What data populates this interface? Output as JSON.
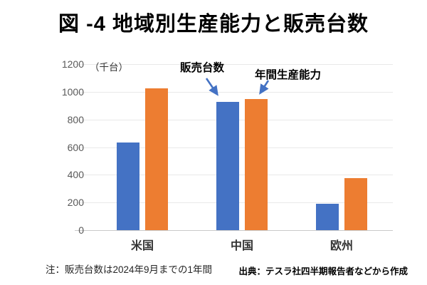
{
  "title": "図 -4 地域別生産能力と販売台数",
  "axis": {
    "unit_label": "（千台）",
    "y_ticks": [
      "1200",
      "1000",
      "800",
      "600",
      "400",
      "200",
      "0"
    ]
  },
  "annotations": {
    "sales_label": "販売台数",
    "capacity_label": "年間生産能力"
  },
  "notes": {
    "footnote": "注：販売台数は2024年9月までの1年間",
    "source": "出典：テスラ社四半期報告者などから作成"
  },
  "colors": {
    "sales": "#4472C4",
    "capacity": "#ED7D31",
    "arrow": "#4472C4",
    "grid": "#e9e9e9",
    "axis_line": "#c9c9c9",
    "tick_text": "#595959"
  },
  "chart_data": {
    "type": "bar",
    "title": "図 -4 地域別生産能力と販売台数",
    "categories": [
      "米国",
      "中国",
      "欧州"
    ],
    "category_keys": [
      "usa",
      "china",
      "europe"
    ],
    "series": [
      {
        "name": "販売台数",
        "key": "sales",
        "color": "#4472C4",
        "values": [
          635,
          925,
          190
        ]
      },
      {
        "name": "年間生産能力",
        "key": "capacity",
        "color": "#ED7D31",
        "values": [
          1025,
          950,
          375
        ]
      }
    ],
    "xlabel": "",
    "ylabel": "（千台）",
    "ylim": [
      0,
      1200
    ],
    "ytick_step": 200,
    "grid": true,
    "legend_position": "none (arrow annotations point to 中国 bars)",
    "footnote": "注：販売台数は2024年9月までの1年間",
    "source": "出典：テスラ社四半期報告者などから作成"
  }
}
